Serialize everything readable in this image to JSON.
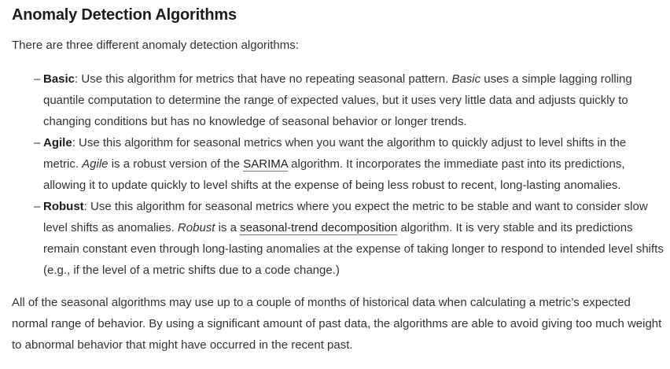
{
  "heading": "Anomaly Detection Algorithms",
  "intro": "There are three different anomaly detection algorithms:",
  "algorithms": [
    {
      "bullet": "–",
      "name": "Basic",
      "text1": ": Use this algorithm for metrics that have no repeating seasonal pattern. ",
      "italic": "Basic",
      "text2": " uses a simple lagging rolling quantile computation to determine the range of expected values, but it uses very little data and adjusts quickly to changing conditions but has no knowledge of seasonal behavior or longer trends."
    },
    {
      "bullet": "–",
      "name": "Agile",
      "text1": ": Use this algorithm for seasonal metrics when you want the algorithm to quickly adjust to level shifts in the metric. ",
      "italic": "Agile",
      "text2": " is a robust version of the ",
      "link": "SARIMA",
      "text3": " algorithm. It incorporates the immediate past into its predictions, allowing it to update quickly to level shifts at the expense of being less robust to recent, long-lasting anomalies."
    },
    {
      "bullet": "–",
      "name": "Robust",
      "text1": ": Use this algorithm for seasonal metrics where you expect the metric to be stable and want to consider slow level shifts as anomalies. ",
      "italic": "Robust",
      "text2": " is a ",
      "link": "seasonal-trend decomposition",
      "text3": " algorithm. It is very stable and its predictions remain constant even through long-lasting anomalies at the expense of taking longer to respond to intended level shifts (e.g., if the level of a metric shifts due to a code change.)"
    }
  ],
  "outro": "All of the seasonal algorithms may use up to a couple of months of historical data when calculating a metric’s expected normal range of behavior. By using a significant amount of past data, the algorithms are able to avoid giving too much weight to abnormal behavior that might have occurred in the recent past."
}
